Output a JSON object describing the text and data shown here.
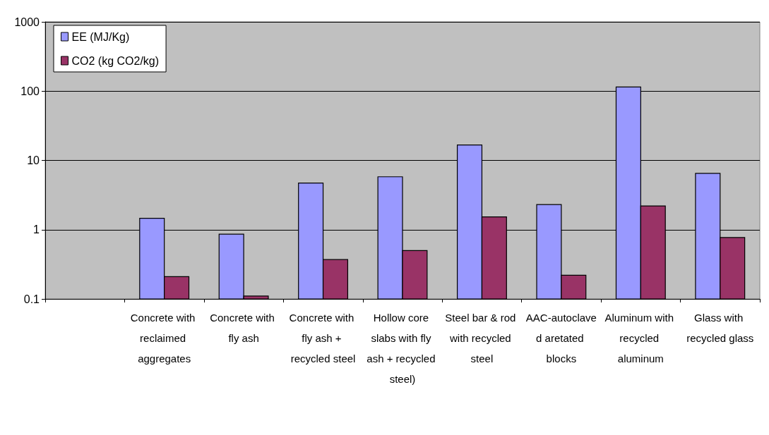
{
  "chart_data": {
    "type": "bar",
    "categories": [
      null,
      "Concrete with reclaimed aggregates",
      "Concrete with fly ash",
      "Concrete with fly ash + recycled steel",
      "Hollow core slabs with fly ash + recycled steel)",
      "Steel bar & rod with recycled steel",
      "AAC-autoclaved aretated blocks",
      "Aluminum with recycled aluminum",
      "Glass with recycled glass"
    ],
    "series": [
      {
        "name": "EE (MJ/Kg)",
        "color": "#9999ff",
        "values": [
          null,
          1.46,
          0.86,
          4.7,
          5.8,
          16.7,
          2.3,
          115,
          6.5
        ]
      },
      {
        "name": "CO2 (kg CO2/kg)",
        "color": "#993366",
        "values": [
          null,
          0.21,
          0.11,
          0.37,
          0.5,
          1.53,
          0.22,
          2.2,
          0.77
        ]
      }
    ],
    "log": "y",
    "ylim": [
      0.1,
      1000
    ],
    "yticks": [
      0.1,
      1,
      10,
      100,
      1000
    ],
    "grid": "y",
    "legend": "top left"
  }
}
